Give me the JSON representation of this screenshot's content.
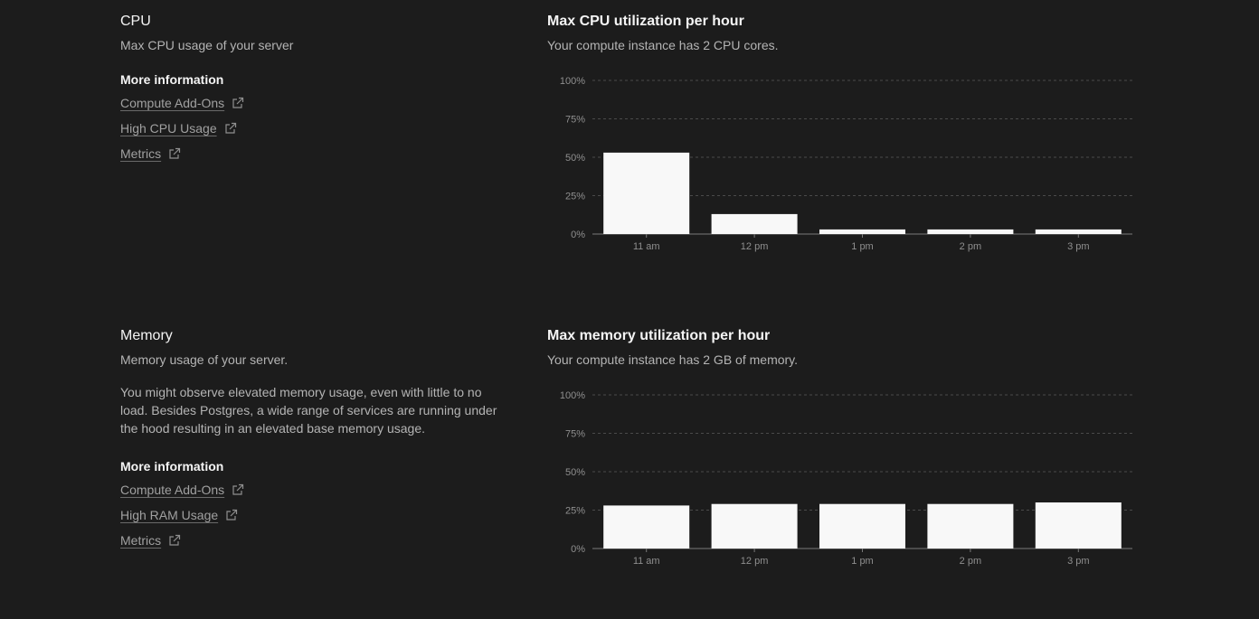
{
  "cpu": {
    "title": "CPU",
    "subtitle": "Max CPU usage of your server",
    "more_heading": "More information",
    "links": [
      {
        "label": "Compute Add-Ons",
        "icon": "external-link-icon"
      },
      {
        "label": "High CPU Usage",
        "icon": "external-link-icon"
      },
      {
        "label": "Metrics",
        "icon": "external-link-icon"
      }
    ],
    "chart_title": "Max CPU utilization per hour",
    "chart_subtitle": "Your compute instance has 2 CPU cores."
  },
  "memory": {
    "title": "Memory",
    "subtitle": "Memory usage of your server.",
    "paragraph": "You might observe elevated memory usage, even with little to no load. Besides Postgres, a wide range of services are running under the hood resulting in an elevated base memory usage.",
    "more_heading": "More information",
    "links": [
      {
        "label": "Compute Add-Ons",
        "icon": "external-link-icon"
      },
      {
        "label": "High RAM Usage",
        "icon": "external-link-icon"
      },
      {
        "label": "Metrics",
        "icon": "external-link-icon"
      }
    ],
    "chart_title": "Max memory utilization per hour",
    "chart_subtitle": "Your compute instance has 2 GB of memory."
  },
  "colors": {
    "background": "#1c1c1c",
    "bar": "#f8f8f8",
    "grid": "#4a4a4a"
  },
  "chart_data": [
    {
      "type": "bar",
      "title": "Max CPU utilization per hour",
      "categories": [
        "11 am",
        "12 pm",
        "1 pm",
        "2 pm",
        "3 pm"
      ],
      "values": [
        53,
        13,
        3,
        3,
        3
      ],
      "yticks": [
        "0%",
        "25%",
        "50%",
        "75%",
        "100%"
      ],
      "ylim": [
        0,
        100
      ],
      "grid": true
    },
    {
      "type": "bar",
      "title": "Max memory utilization per hour",
      "categories": [
        "11 am",
        "12 pm",
        "1 pm",
        "2 pm",
        "3 pm"
      ],
      "values": [
        28,
        29,
        29,
        29,
        30
      ],
      "yticks": [
        "0%",
        "25%",
        "50%",
        "75%",
        "100%"
      ],
      "ylim": [
        0,
        100
      ],
      "grid": true
    }
  ]
}
